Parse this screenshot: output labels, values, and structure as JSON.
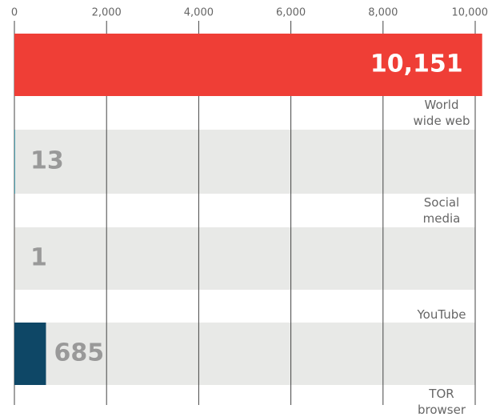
{
  "chart_data": {
    "type": "bar",
    "orientation": "horizontal",
    "categories": [
      "World wide web",
      "Social media",
      "YouTube",
      "TOR browser"
    ],
    "values": [
      10151,
      13,
      1,
      685
    ],
    "value_labels": [
      "10,151",
      "13",
      "1",
      "685"
    ],
    "colors": [
      "#ef3e36",
      "#1f8fa6",
      "#f3d27a",
      "#0e4766"
    ],
    "xlim": [
      0,
      10000
    ],
    "xticks": [
      0,
      {
        "value": 2000,
        "label": "2,000"
      },
      {
        "value": 4000,
        "label": "4,000"
      },
      {
        "value": 6000,
        "label": "6,000"
      },
      {
        "value": 8000,
        "label": "8,000"
      },
      {
        "value": 10000,
        "label": "10,000"
      }
    ],
    "grid": true
  }
}
